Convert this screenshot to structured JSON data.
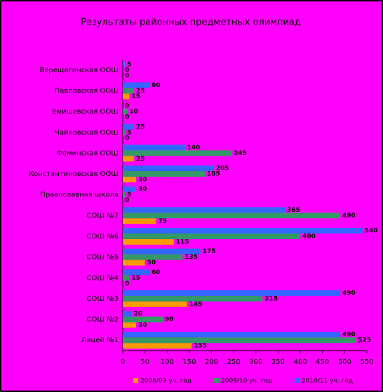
{
  "chart_data": {
    "type": "hbar",
    "title": "Результаты районных предметных олимпиад",
    "categories": [
      "Верещагинская ООШ",
      "Павловская ООШ",
      "Емишевская ООШ",
      "Чайковская ООШ",
      "Фоминская ООШ",
      "Константиновская ООШ",
      "Православная школа",
      "СОШ №7",
      "СОШ №6",
      "СОШ №5",
      "СОШ №4",
      "СОШ №3",
      "СОШ №2",
      "Лицей №1"
    ],
    "series": [
      {
        "name": "2008/09 уч. год",
        "color": "#ff9900",
        "values": [
          0,
          15,
          0,
          0,
          25,
          30,
          0,
          75,
          115,
          50,
          0,
          145,
          30,
          155
        ]
      },
      {
        "name": "2009/10 уч. год",
        "color": "#339966",
        "values": [
          0,
          25,
          10,
          5,
          245,
          185,
          5,
          490,
          400,
          135,
          15,
          315,
          90,
          525
        ]
      },
      {
        "name": "2010/11 уч. год",
        "color": "#3366ff",
        "values": [
          5,
          60,
          0,
          25,
          140,
          205,
          30,
          365,
          540,
          175,
          60,
          490,
          20,
          490
        ]
      }
    ],
    "xlim": [
      0,
      550
    ],
    "xticks": [
      0,
      50,
      100,
      150,
      200,
      250,
      300,
      350,
      400,
      450,
      500,
      550
    ],
    "grid": false
  }
}
